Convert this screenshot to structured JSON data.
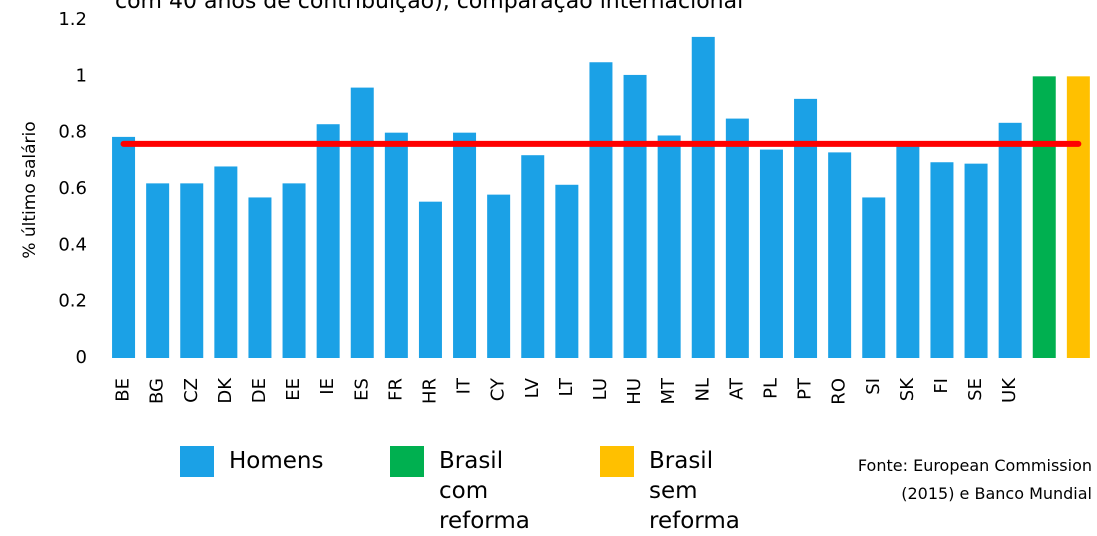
{
  "chart_data": {
    "type": "bar",
    "title": "com 40 anos de contribuição), comparação internacional",
    "y_label": "% último salário",
    "source": "Fonte: European Commission (2015) e Banco Mundial",
    "categories": [
      "BE",
      "BG",
      "CZ",
      "DK",
      "DE",
      "EE",
      "IE",
      "ES",
      "FR",
      "HR",
      "IT",
      "CY",
      "LV",
      "LT",
      "LU",
      "HU",
      "MT",
      "NL",
      "AT",
      "PL",
      "PT",
      "RO",
      "SI",
      "SK",
      "FI",
      "SE",
      "UK",
      null,
      null
    ],
    "series": [
      {
        "name": "Homens",
        "color": "#1ba1e6",
        "values": [
          0.785,
          0.62,
          0.62,
          0.68,
          0.57,
          0.62,
          0.83,
          0.96,
          0.8,
          0.555,
          0.8,
          0.58,
          0.72,
          0.615,
          1.05,
          1.005,
          0.79,
          1.14,
          0.85,
          0.74,
          0.92,
          0.73,
          0.57,
          0.76,
          0.695,
          0.69,
          0.835,
          null,
          null
        ]
      },
      {
        "name": "Brasil com reforma",
        "color": "#00b050",
        "values": [
          null,
          null,
          null,
          null,
          null,
          null,
          null,
          null,
          null,
          null,
          null,
          null,
          null,
          null,
          null,
          null,
          null,
          null,
          null,
          null,
          null,
          null,
          null,
          null,
          null,
          null,
          null,
          1.0,
          null
        ]
      },
      {
        "name": "Brasil sem reforma",
        "color": "#ffc000",
        "values": [
          null,
          null,
          null,
          null,
          null,
          null,
          null,
          null,
          null,
          null,
          null,
          null,
          null,
          null,
          null,
          null,
          null,
          null,
          null,
          null,
          null,
          null,
          null,
          null,
          null,
          null,
          null,
          null,
          1.0
        ]
      }
    ],
    "average_line": {
      "value": 0.76,
      "color": "#ff0000"
    },
    "ylim": [
      0,
      1.2
    ],
    "yticks": [
      0,
      0.2,
      0.4,
      0.6,
      0.8,
      1,
      1.2
    ],
    "grid": false
  }
}
